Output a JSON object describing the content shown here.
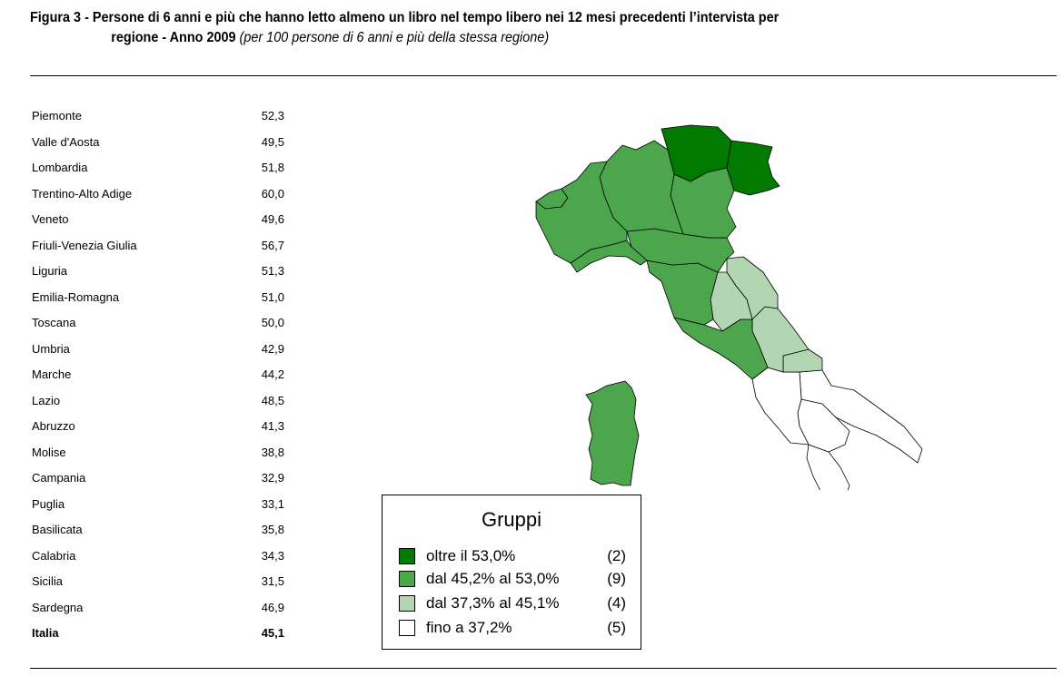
{
  "title": {
    "main_line1": "Figura 3 - Persone di 6 anni e più che hanno letto almeno un libro nel tempo libero nei 12 mesi precedenti l’intervista per",
    "main_line2": "regione - Anno 2009",
    "subtitle": "(per 100 persone di 6 anni e più della stessa regione)"
  },
  "regions": [
    {
      "name": "Piemonte",
      "value": "52,3"
    },
    {
      "name": "Valle d'Aosta",
      "value": "49,5"
    },
    {
      "name": "Lombardia",
      "value": "51,8"
    },
    {
      "name": "Trentino-Alto Adige",
      "value": "60,0"
    },
    {
      "name": "Veneto",
      "value": "49,6"
    },
    {
      "name": "Friuli-Venezia Giulia",
      "value": "56,7"
    },
    {
      "name": "Liguria",
      "value": "51,3"
    },
    {
      "name": "Emilia-Romagna",
      "value": "51,0"
    },
    {
      "name": "Toscana",
      "value": "50,0"
    },
    {
      "name": "Umbria",
      "value": "42,9"
    },
    {
      "name": "Marche",
      "value": "44,2"
    },
    {
      "name": "Lazio",
      "value": "48,5"
    },
    {
      "name": "Abruzzo",
      "value": "41,3"
    },
    {
      "name": "Molise",
      "value": "38,8"
    },
    {
      "name": "Campania",
      "value": "32,9"
    },
    {
      "name": "Puglia",
      "value": "33,1"
    },
    {
      "name": "Basilicata",
      "value": "35,8"
    },
    {
      "name": "Calabria",
      "value": "34,3"
    },
    {
      "name": "Sicilia",
      "value": "31,5"
    },
    {
      "name": "Sardegna",
      "value": "46,9"
    }
  ],
  "total": {
    "name": "Italia",
    "value": "45,1"
  },
  "legend": {
    "title": "Gruppi",
    "items": [
      {
        "label": "oltre il 53,0%",
        "count": "(2)",
        "color": "#007a00"
      },
      {
        "label": "dal 45,2% al 53,0%",
        "count": "(9)",
        "color": "#4ca64c"
      },
      {
        "label": "dal 37,3% al 45,1%",
        "count": "(4)",
        "color": "#b2d6b2"
      },
      {
        "label": "fino a 37,2%",
        "count": "(5)",
        "color": "#ffffff"
      }
    ]
  },
  "map_colors": {
    "Piemonte": "#4ca64c",
    "Valle d'Aosta": "#4ca64c",
    "Lombardia": "#4ca64c",
    "Trentino-Alto Adige": "#007a00",
    "Veneto": "#4ca64c",
    "Friuli-Venezia Giulia": "#007a00",
    "Liguria": "#4ca64c",
    "Emilia-Romagna": "#4ca64c",
    "Toscana": "#4ca64c",
    "Umbria": "#b2d6b2",
    "Marche": "#b2d6b2",
    "Lazio": "#4ca64c",
    "Abruzzo": "#b2d6b2",
    "Molise": "#b2d6b2",
    "Campania": "#ffffff",
    "Puglia": "#ffffff",
    "Basilicata": "#ffffff",
    "Calabria": "#ffffff",
    "Sicilia": "#ffffff",
    "Sardegna": "#4ca64c"
  }
}
